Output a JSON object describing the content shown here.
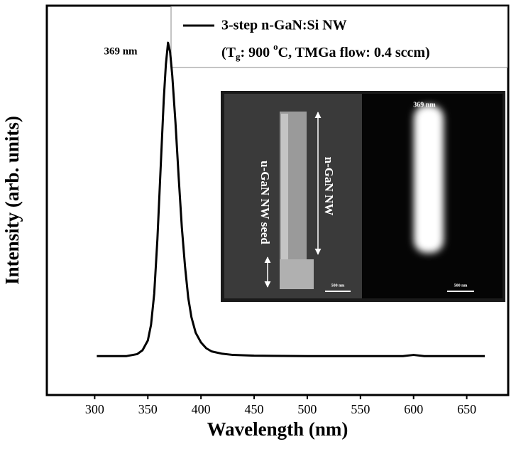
{
  "chart_data": {
    "type": "line",
    "xlabel": "Wavelength (nm)",
    "ylabel": "Intensity (arb. units)",
    "x": [
      302,
      310,
      320,
      330,
      340,
      345,
      350,
      353,
      356,
      359,
      362,
      365,
      367,
      369,
      371,
      373,
      376,
      379,
      382,
      385,
      388,
      391,
      395,
      400,
      405,
      410,
      420,
      430,
      450,
      500,
      550,
      590,
      600,
      610,
      650,
      667
    ],
    "series": [
      {
        "name": "3-step n-GaN:Si NW",
        "color": "#000000",
        "values": [
          0.1,
          0.1,
          0.1,
          0.1,
          0.105,
          0.115,
          0.14,
          0.18,
          0.26,
          0.4,
          0.58,
          0.76,
          0.85,
          0.905,
          0.88,
          0.82,
          0.7,
          0.56,
          0.43,
          0.33,
          0.25,
          0.2,
          0.16,
          0.135,
          0.12,
          0.112,
          0.106,
          0.103,
          0.101,
          0.1,
          0.1,
          0.1,
          0.103,
          0.1,
          0.1,
          0.1
        ]
      }
    ],
    "legend_note": [
      "(T",
      "g",
      ": 900 ",
      "o",
      "C, TMGa flow: 0.4 sccm)"
    ],
    "peak_annotation": "369 nm",
    "xlim": [
      255,
      689
    ],
    "ylim": [
      0,
      1
    ],
    "xticks": [
      300,
      350,
      400,
      450,
      500,
      550,
      600,
      650
    ],
    "inset": {
      "seed_label": "u-GaN NW seed",
      "wire_label": "n-GaN NW",
      "emission_label": "369 nm",
      "scale_left": "500 nm",
      "scale_right": "500 nm"
    }
  }
}
